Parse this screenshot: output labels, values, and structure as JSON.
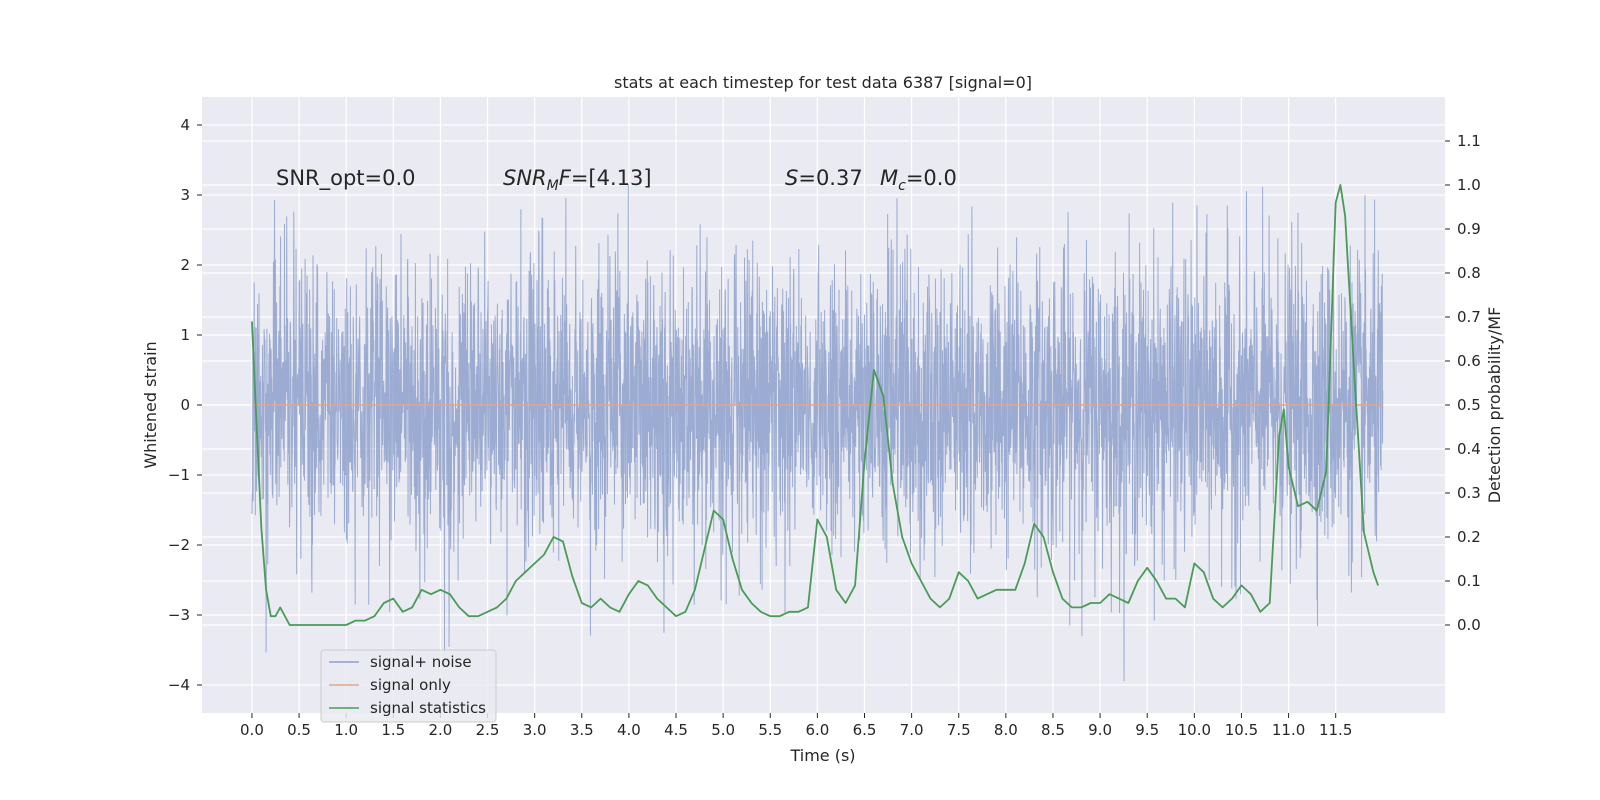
{
  "chart_data": {
    "type": "line",
    "title": "stats at each timestep for test data 6387 [signal=0]",
    "xlabel": "Time (s)",
    "ylabel_left": "Whitened strain",
    "ylabel_right": "Detection probability/MF",
    "xlim": [
      -0.53,
      12.66
    ],
    "ylim_left": [
      -4.4,
      4.4
    ],
    "ylim_right": [
      -0.2,
      1.2
    ],
    "x_ticks": [
      0.0,
      0.5,
      1.0,
      1.5,
      2.0,
      2.5,
      3.0,
      3.5,
      4.0,
      4.5,
      5.0,
      5.5,
      6.0,
      6.5,
      7.0,
      7.5,
      8.0,
      8.5,
      9.0,
      9.5,
      10.0,
      10.5,
      11.0,
      11.5
    ],
    "x_tick_labels": [
      "0.0",
      "0.5",
      "1.0",
      "1.5",
      "2.0",
      "2.5",
      "3.0",
      "3.5",
      "4.0",
      "4.5",
      "5.0",
      "5.5",
      "6.0",
      "6.5",
      "7.0",
      "7.5",
      "8.0",
      "8.5",
      "9.0",
      "9.5",
      "10.0",
      "10.5",
      "11.0",
      "11.5"
    ],
    "y_left_ticks": [
      4,
      3,
      2,
      1,
      0,
      -1,
      -2,
      -3,
      -4
    ],
    "y_left_tick_labels": [
      "4",
      "3",
      "2",
      "1",
      "0",
      "−1",
      "−2",
      "−3",
      "−4"
    ],
    "y_right_ticks": [
      1.1,
      1.0,
      0.9,
      0.8,
      0.7,
      0.6,
      0.5,
      0.4,
      0.3,
      0.2,
      0.1,
      0.0
    ],
    "y_right_tick_labels": [
      "1.1",
      "1.0",
      "0.9",
      "0.8",
      "0.7",
      "0.6",
      "0.5",
      "0.4",
      "0.3",
      "0.2",
      "0.1",
      "0.0"
    ],
    "grid": true,
    "legend_position": "lower-left",
    "series": [
      {
        "name": "signal+ noise",
        "axis": "left",
        "color": "#8da0cb",
        "t_range": [
          0.0,
          12.0
        ],
        "noise_envelope": {
          "typical_upper": 2.4,
          "typical_lower": -2.4,
          "extreme_upper": 4.0,
          "extreme_lower": -4.1
        }
      },
      {
        "name": "signal only",
        "axis": "left",
        "color": "#e5a48a",
        "x": [
          0.0,
          12.0
        ],
        "y": [
          0.0,
          0.0
        ]
      },
      {
        "name": "signal statistics",
        "axis": "right",
        "color": "#4a9b57",
        "x": [
          0.0,
          0.05,
          0.1,
          0.15,
          0.2,
          0.25,
          0.3,
          0.4,
          0.5,
          0.6,
          0.7,
          0.8,
          0.9,
          1.0,
          1.1,
          1.2,
          1.3,
          1.4,
          1.5,
          1.6,
          1.7,
          1.8,
          1.9,
          2.0,
          2.1,
          2.2,
          2.3,
          2.4,
          2.5,
          2.6,
          2.7,
          2.8,
          2.9,
          3.0,
          3.1,
          3.2,
          3.3,
          3.4,
          3.5,
          3.6,
          3.7,
          3.8,
          3.9,
          4.0,
          4.1,
          4.2,
          4.3,
          4.4,
          4.5,
          4.6,
          4.7,
          4.8,
          4.9,
          5.0,
          5.1,
          5.2,
          5.3,
          5.4,
          5.5,
          5.6,
          5.7,
          5.8,
          5.9,
          6.0,
          6.1,
          6.2,
          6.3,
          6.4,
          6.5,
          6.6,
          6.7,
          6.8,
          6.9,
          7.0,
          7.1,
          7.2,
          7.3,
          7.4,
          7.5,
          7.6,
          7.7,
          7.8,
          7.9,
          8.0,
          8.1,
          8.2,
          8.3,
          8.4,
          8.5,
          8.6,
          8.7,
          8.8,
          8.9,
          9.0,
          9.1,
          9.2,
          9.3,
          9.4,
          9.5,
          9.6,
          9.7,
          9.8,
          9.9,
          10.0,
          10.1,
          10.2,
          10.3,
          10.4,
          10.5,
          10.6,
          10.7,
          10.8,
          10.9,
          10.95,
          11.0,
          11.1,
          11.2,
          11.3,
          11.4,
          11.5,
          11.55,
          11.6,
          11.7,
          11.8,
          11.9,
          11.95
        ],
        "y": [
          0.69,
          0.45,
          0.22,
          0.08,
          0.02,
          0.02,
          0.04,
          0.0,
          0.0,
          0.0,
          0.0,
          0.0,
          0.0,
          0.0,
          0.01,
          0.01,
          0.02,
          0.05,
          0.06,
          0.03,
          0.04,
          0.08,
          0.07,
          0.08,
          0.07,
          0.04,
          0.02,
          0.02,
          0.03,
          0.04,
          0.06,
          0.1,
          0.12,
          0.14,
          0.16,
          0.2,
          0.19,
          0.11,
          0.05,
          0.04,
          0.06,
          0.04,
          0.03,
          0.07,
          0.1,
          0.09,
          0.06,
          0.04,
          0.02,
          0.03,
          0.08,
          0.17,
          0.26,
          0.24,
          0.15,
          0.08,
          0.05,
          0.03,
          0.02,
          0.02,
          0.03,
          0.03,
          0.04,
          0.24,
          0.2,
          0.08,
          0.05,
          0.09,
          0.37,
          0.58,
          0.52,
          0.32,
          0.2,
          0.14,
          0.1,
          0.06,
          0.04,
          0.06,
          0.12,
          0.1,
          0.06,
          0.07,
          0.08,
          0.08,
          0.08,
          0.14,
          0.23,
          0.2,
          0.12,
          0.06,
          0.04,
          0.04,
          0.05,
          0.05,
          0.07,
          0.06,
          0.05,
          0.1,
          0.13,
          0.1,
          0.06,
          0.06,
          0.04,
          0.14,
          0.12,
          0.06,
          0.04,
          0.06,
          0.09,
          0.07,
          0.03,
          0.05,
          0.43,
          0.49,
          0.36,
          0.27,
          0.28,
          0.26,
          0.35,
          0.96,
          1.0,
          0.93,
          0.56,
          0.21,
          0.12,
          0.09
        ]
      }
    ],
    "annotations": [
      {
        "id": "snr_opt",
        "x": 0.2,
        "y": 3.1,
        "text": "SNR_opt=0.0"
      },
      {
        "id": "snr_mf",
        "x": 2.6,
        "y": 3.1,
        "text": "SNR_MF=[4.13]"
      },
      {
        "id": "s",
        "x": 5.6,
        "y": 3.1,
        "text": "S=0.37"
      },
      {
        "id": "mc",
        "x": 6.6,
        "y": 3.1,
        "text": "M_c=0.0"
      }
    ]
  },
  "annotation_text": {
    "snr_opt": "SNR_opt=0.0",
    "snr_mf_sym": "SNR",
    "snr_mf_sub": "M",
    "snr_mf_sym2": "F",
    "snr_mf_val": "=[4.13]",
    "s_sym": "S",
    "s_val": "=0.37",
    "mc_sym": "M",
    "mc_sub": "c",
    "mc_val": "=0.0"
  },
  "colors": {
    "axes_background": "#eaeaf2",
    "grid": "#ffffff",
    "text": "#262626"
  }
}
